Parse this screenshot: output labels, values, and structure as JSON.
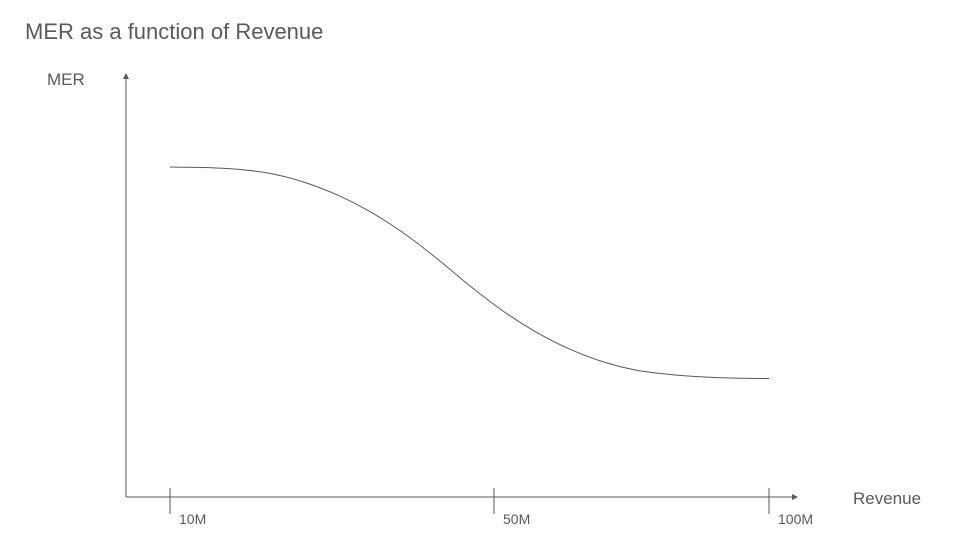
{
  "chart_data": {
    "type": "line",
    "title": "MER as a function of Revenue",
    "xlabel": "Revenue",
    "ylabel": "MER",
    "x_ticks": [
      {
        "value": 10,
        "label": "10M"
      },
      {
        "value": 50,
        "label": "50M"
      },
      {
        "value": 100,
        "label": "100M"
      }
    ],
    "xlim": [
      10,
      100
    ],
    "ylim": [
      0,
      1
    ],
    "y_ticks_labeled": false,
    "grid": false,
    "series": [
      {
        "color": "#595959",
        "x": [
          10,
          15,
          20,
          25,
          30,
          35,
          40,
          45,
          50,
          55,
          60,
          65,
          70,
          75,
          80,
          85,
          90,
          95,
          100
        ],
        "y": [
          0.78,
          0.779,
          0.775,
          0.765,
          0.745,
          0.715,
          0.675,
          0.625,
          0.565,
          0.5,
          0.44,
          0.39,
          0.35,
          0.32,
          0.3,
          0.29,
          0.284,
          0.281,
          0.28
        ]
      }
    ]
  }
}
